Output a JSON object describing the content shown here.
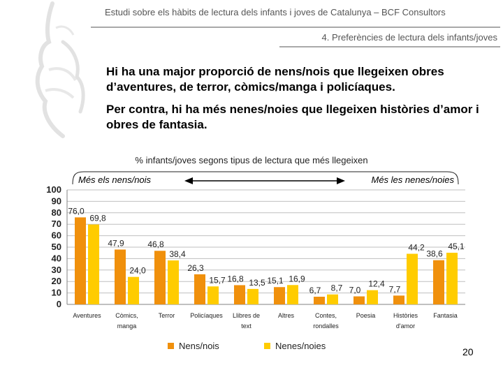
{
  "header": {
    "title": "Estudi sobre els hàbits de lectura dels infants i joves de Catalunya – BCF Consultors",
    "section": "4. Preferències de lectura dels infants/joves"
  },
  "body": {
    "paragraph1": "Hi ha una major proporció de nens/nois que llegeixen obres d’aventures, de terror, còmics/manga i policíaques.",
    "paragraph2": "Per contra, hi ha més nenes/noies que llegeixen històries d’amor i obres de fantasia."
  },
  "annotation": {
    "left": "Més els nens/nois",
    "right": "Més les nenes/noies"
  },
  "colors": {
    "boys": "#f0900c",
    "girls": "#ffcc00",
    "grid": "#bfbfbf"
  },
  "chart_data": {
    "type": "bar",
    "title": "% infants/joves segons tipus de lectura que més llegeixen",
    "categories": [
      [
        "Aventures"
      ],
      [
        "Còmics,",
        "manga"
      ],
      [
        "Terror"
      ],
      [
        "Policíaques"
      ],
      [
        "Llibres de",
        "text"
      ],
      [
        "Altres"
      ],
      [
        "Contes,",
        "rondalles"
      ],
      [
        "Poesia"
      ],
      [
        "Històries",
        "d'amor"
      ],
      [
        "Fantasia"
      ]
    ],
    "series": [
      {
        "name": "Nens/nois",
        "values": [
          76.0,
          47.9,
          46.8,
          26.3,
          16.8,
          15.1,
          6.7,
          7.0,
          7.7,
          38.6
        ],
        "labels": [
          "76,0",
          "47,9",
          "46,8",
          "26,3",
          "16,8",
          "15,1",
          "6,7",
          "7,0",
          "7,7",
          "38,6"
        ]
      },
      {
        "name": "Nenes/noies",
        "values": [
          69.8,
          24.0,
          38.4,
          15.7,
          13.5,
          16.9,
          8.7,
          12.4,
          44.2,
          45.1
        ],
        "labels": [
          "69,8",
          "24,0",
          "38,4",
          "15,7",
          "13,5",
          "16,9",
          "8,7",
          "12,4",
          "44,2",
          "45,1"
        ]
      }
    ],
    "ylim": [
      0,
      100
    ],
    "yticks": [
      0,
      10,
      20,
      30,
      40,
      50,
      60,
      70,
      80,
      90,
      100
    ],
    "grid": true,
    "legend_position": "bottom"
  },
  "page_number": "20"
}
